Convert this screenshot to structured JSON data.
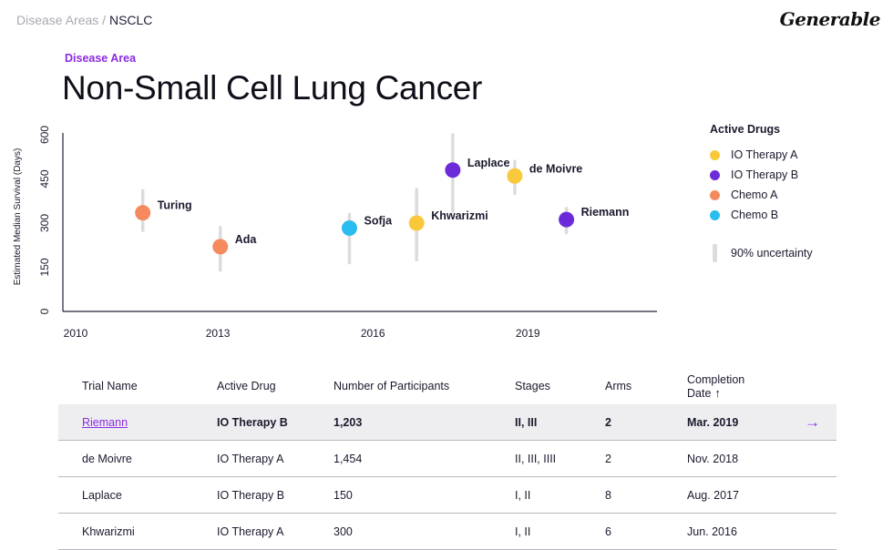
{
  "breadcrumb": {
    "parent": "Disease Areas",
    "separator": " / ",
    "current": "NSCLC"
  },
  "logo": "Generable",
  "header": {
    "eyebrow": "Disease Area",
    "title": "Non-Small Cell Lung Cancer"
  },
  "legend": {
    "title": "Active Drugs",
    "items": [
      {
        "label": "IO Therapy A",
        "color": "#f9c93b"
      },
      {
        "label": "IO Therapy B",
        "color": "#6c2bd9"
      },
      {
        "label": "Chemo A",
        "color": "#f58a5f"
      },
      {
        "label": "Chemo B",
        "color": "#2bbcef"
      }
    ],
    "uncertainty_label": "90% uncertainty"
  },
  "chart_data": {
    "type": "scatter",
    "ylabel": "Estimated Median Survival (Days)",
    "xlabel": "",
    "xlim": [
      2010,
      2021.5
    ],
    "ylim": [
      0,
      600
    ],
    "xticks": [
      2010,
      2013,
      2016,
      2019
    ],
    "yticks": [
      0,
      150,
      300,
      450,
      600
    ],
    "grid": false,
    "legend_position": "right",
    "points": [
      {
        "label": "Turing",
        "drug": "Chemo A",
        "x": 2011.3,
        "y": 335,
        "lo": 275,
        "hi": 410,
        "color": "#f58a5f"
      },
      {
        "label": "Ada",
        "drug": "Chemo A",
        "x": 2012.8,
        "y": 220,
        "lo": 140,
        "hi": 285,
        "color": "#f58a5f"
      },
      {
        "label": "Sofja",
        "drug": "Chemo B",
        "x": 2015.3,
        "y": 283,
        "lo": 165,
        "hi": 330,
        "color": "#2bbcef"
      },
      {
        "label": "Khwarizmi",
        "drug": "IO Therapy A",
        "x": 2016.6,
        "y": 300,
        "lo": 175,
        "hi": 415,
        "color": "#f9c93b"
      },
      {
        "label": "Laplace",
        "drug": "IO Therapy B",
        "x": 2017.3,
        "y": 480,
        "lo": 340,
        "hi": 600,
        "color": "#6c2bd9"
      },
      {
        "label": "de Moivre",
        "drug": "IO Therapy A",
        "x": 2018.5,
        "y": 460,
        "lo": 400,
        "hi": 510,
        "color": "#f9c93b"
      },
      {
        "label": "Riemann",
        "drug": "IO Therapy B",
        "x": 2019.5,
        "y": 312,
        "lo": 268,
        "hi": 350,
        "color": "#6c2bd9"
      }
    ]
  },
  "table": {
    "headers": [
      "Trial Name",
      "Active Drug",
      "Number of Participants",
      "Stages",
      "Arms",
      "Completion Date"
    ],
    "sort_arrow": "↑",
    "row_arrow": "→",
    "rows": [
      [
        "Riemann",
        "IO Therapy B",
        "1,203",
        "II, III",
        "2",
        "Mar. 2019"
      ],
      [
        "de Moivre",
        "IO Therapy A",
        "1,454",
        "II, III, IIII",
        "2",
        "Nov. 2018"
      ],
      [
        "Laplace",
        "IO Therapy B",
        "150",
        "I, II",
        "8",
        "Aug. 2017"
      ],
      [
        "Khwarizmi",
        "IO Therapy A",
        "300",
        "I, II",
        "6",
        "Jun. 2016"
      ]
    ]
  }
}
